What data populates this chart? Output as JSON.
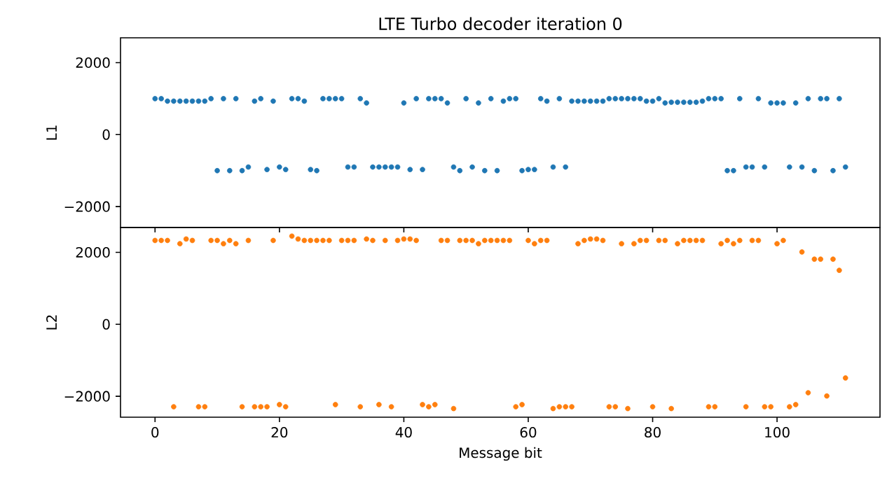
{
  "chart_data": [
    {
      "type": "scatter",
      "title": "LTE Turbo decoder iteration 0",
      "ylabel": "L1",
      "color": "#1f77b4",
      "marker": "circle",
      "tick_labels": "y",
      "x": [
        0,
        1,
        2,
        3,
        4,
        5,
        6,
        7,
        8,
        9,
        10,
        11,
        12,
        13,
        14,
        15,
        16,
        17,
        18,
        19,
        20,
        21,
        22,
        23,
        24,
        25,
        26,
        27,
        28,
        29,
        30,
        31,
        32,
        33,
        34,
        35,
        36,
        37,
        38,
        39,
        40,
        41,
        42,
        43,
        44,
        45,
        46,
        47,
        48,
        49,
        50,
        51,
        52,
        53,
        54,
        55,
        56,
        57,
        58,
        59,
        60,
        61,
        62,
        63,
        64,
        65,
        66,
        67,
        68,
        69,
        70,
        71,
        72,
        73,
        74,
        75,
        76,
        77,
        78,
        79,
        80,
        81,
        82,
        83,
        84,
        85,
        86,
        87,
        88,
        89,
        90,
        91,
        92,
        93,
        94,
        95,
        96,
        97,
        98,
        99,
        100,
        101,
        102,
        103,
        104,
        105,
        106,
        107,
        108,
        109,
        110,
        111
      ],
      "values": [
        1000,
        1000,
        930,
        930,
        930,
        930,
        930,
        930,
        930,
        1000,
        -1000,
        1000,
        -1000,
        1000,
        -1000,
        -900,
        930,
        1000,
        -970,
        930,
        -900,
        -970,
        1000,
        1000,
        930,
        -970,
        -1000,
        1000,
        1000,
        1000,
        1000,
        -900,
        -900,
        1000,
        880,
        -900,
        -900,
        -900,
        -900,
        -900,
        880,
        -970,
        1000,
        -970,
        1000,
        1000,
        1000,
        880,
        -900,
        -1000,
        1000,
        -900,
        880,
        -1000,
        1000,
        -1000,
        930,
        1000,
        1000,
        -1000,
        -970,
        -970,
        1000,
        930,
        -900,
        1000,
        -900,
        930,
        930,
        930,
        930,
        930,
        930,
        1000,
        1000,
        1000,
        1000,
        1000,
        1000,
        930,
        930,
        1000,
        880,
        900,
        900,
        900,
        900,
        900,
        930,
        1000,
        1000,
        1000,
        -1000,
        -1000,
        1000,
        -900,
        -900,
        1000,
        -900,
        880,
        880,
        880,
        -900,
        880,
        -900,
        1000,
        -1000,
        1000,
        1000,
        -1000,
        1000,
        -900
      ],
      "xlim": [
        -5.55,
        116.55
      ],
      "xticks": [
        0,
        20,
        40,
        60,
        80,
        100
      ],
      "ylim": [
        -2580,
        2690
      ],
      "yticks": [
        {
          "value": -2000,
          "label": "−2000"
        },
        0,
        2000
      ]
    },
    {
      "type": "scatter",
      "ylabel": "L2",
      "xlabel": "Message bit",
      "color": "#ff7f0e",
      "marker": "circle",
      "x": [
        0,
        1,
        2,
        3,
        4,
        5,
        6,
        7,
        8,
        9,
        10,
        11,
        12,
        13,
        14,
        15,
        16,
        17,
        18,
        19,
        20,
        21,
        22,
        23,
        24,
        25,
        26,
        27,
        28,
        29,
        30,
        31,
        32,
        33,
        34,
        35,
        36,
        37,
        38,
        39,
        40,
        41,
        42,
        43,
        44,
        45,
        46,
        47,
        48,
        49,
        50,
        51,
        52,
        53,
        54,
        55,
        56,
        57,
        58,
        59,
        60,
        61,
        62,
        63,
        64,
        65,
        66,
        67,
        68,
        69,
        70,
        71,
        72,
        73,
        74,
        75,
        76,
        77,
        78,
        79,
        80,
        81,
        82,
        83,
        84,
        85,
        86,
        87,
        88,
        89,
        90,
        91,
        92,
        93,
        94,
        95,
        96,
        97,
        98,
        99,
        100,
        101,
        102,
        103,
        104,
        105,
        106,
        107,
        108,
        109,
        110,
        111
      ],
      "values": [
        2330,
        2330,
        2330,
        -2290,
        2240,
        2370,
        2330,
        -2290,
        -2290,
        2330,
        2330,
        2240,
        2330,
        2240,
        -2290,
        2330,
        -2290,
        -2290,
        -2290,
        2330,
        -2230,
        -2290,
        2450,
        2370,
        2330,
        2330,
        2330,
        2330,
        2330,
        -2230,
        2330,
        2330,
        2330,
        -2290,
        2370,
        2330,
        -2230,
        2330,
        -2290,
        2330,
        2370,
        2370,
        2330,
        -2230,
        -2290,
        -2230,
        2330,
        2330,
        -2340,
        2330,
        2330,
        2330,
        2240,
        2330,
        2330,
        2330,
        2330,
        2330,
        -2290,
        -2230,
        2330,
        2240,
        2330,
        2330,
        -2340,
        -2290,
        -2290,
        -2290,
        2240,
        2330,
        2370,
        2370,
        2330,
        -2290,
        -2290,
        2240,
        -2340,
        2240,
        2330,
        2330,
        -2290,
        2330,
        2330,
        -2340,
        2240,
        2330,
        2330,
        2330,
        2330,
        -2290,
        -2290,
        2240,
        2330,
        2240,
        2330,
        -2290,
        2330,
        2330,
        -2290,
        -2290,
        2240,
        2330,
        -2290,
        -2230,
        2010,
        -1900,
        1810,
        1810,
        -1990,
        1810,
        1500,
        -1490
      ],
      "xlim": [
        -5.55,
        116.55
      ],
      "xticks": [
        0,
        20,
        40,
        60,
        80,
        100
      ],
      "ylim": [
        -2580,
        2690
      ],
      "yticks": [
        {
          "value": -2000,
          "label": "−2000"
        },
        0,
        2000
      ]
    }
  ]
}
